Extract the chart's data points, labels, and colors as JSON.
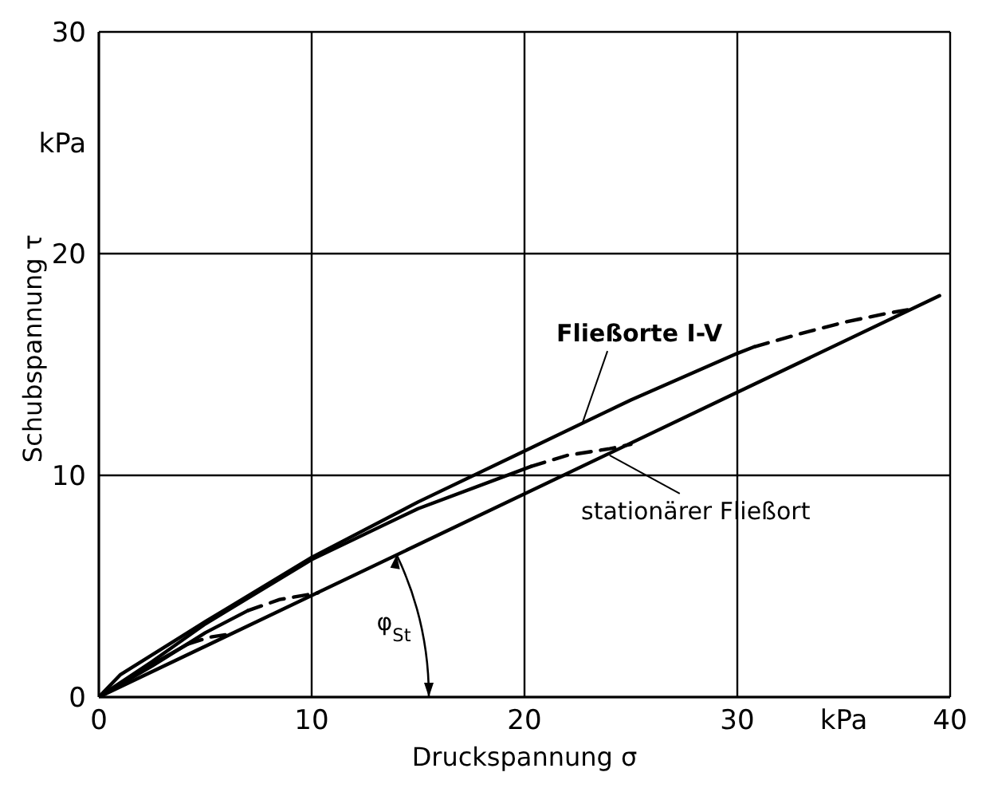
{
  "chart_data": {
    "type": "line",
    "xlabel": "Druckspannung σ",
    "ylabel": "Schubspannung τ",
    "xlim": [
      0,
      40
    ],
    "ylim": [
      0,
      30
    ],
    "xticks": [
      0,
      10,
      20,
      30,
      {
        "value": 35,
        "label": "kPa"
      },
      40
    ],
    "yticks": [
      0,
      10,
      20,
      {
        "value": 25,
        "label": "kPa"
      },
      30
    ],
    "grid": true,
    "marker": "none",
    "series": [
      {
        "color": "#000000",
        "line_style": "solid",
        "x": [
          0,
          39.5
        ],
        "values": [
          0,
          18.1
        ]
      },
      {
        "color": "#000000",
        "line_style": "solid",
        "x": [
          0,
          1,
          2.5,
          5,
          10,
          15,
          20,
          25,
          30,
          30.8
        ],
        "values": [
          0,
          1.0,
          1.9,
          3.4,
          6.3,
          8.8,
          11.1,
          13.4,
          15.5,
          15.8
        ]
      },
      {
        "color": "#000000",
        "line_style": "dashed",
        "x": [
          30.8,
          33,
          35,
          37,
          38.2
        ],
        "values": [
          15.8,
          16.4,
          16.9,
          17.3,
          17.5
        ]
      },
      {
        "color": "#000000",
        "line_style": "solid",
        "x": [
          0,
          2.5,
          5,
          10,
          15,
          20.3
        ],
        "values": [
          0,
          1.6,
          3.3,
          6.2,
          8.5,
          10.4
        ]
      },
      {
        "color": "#000000",
        "line_style": "dashed",
        "x": [
          20.3,
          22,
          24,
          25
        ],
        "values": [
          10.4,
          10.9,
          11.2,
          11.4
        ]
      },
      {
        "color": "#000000",
        "line_style": "solid",
        "x": [
          0,
          2.5,
          5,
          7
        ],
        "values": [
          0,
          1.4,
          2.9,
          3.9
        ]
      },
      {
        "color": "#000000",
        "line_style": "dashed",
        "x": [
          7,
          8.5,
          10.3
        ],
        "values": [
          3.9,
          4.4,
          4.7
        ]
      },
      {
        "color": "#000000",
        "line_style": "solid",
        "x": [
          0,
          2,
          4.2
        ],
        "values": [
          0,
          1.2,
          2.4
        ]
      },
      {
        "color": "#000000",
        "line_style": "dashed",
        "x": [
          4.2,
          5.2,
          6.2
        ],
        "values": [
          2.4,
          2.7,
          2.85
        ]
      }
    ],
    "annotations": [
      {
        "text": "Fließorte I-V",
        "x": 22.7,
        "y": 12.3
      },
      {
        "text": "stationärer Fließort",
        "x": 24,
        "y": 10.9
      },
      "φ$_{St}$"
    ]
  }
}
